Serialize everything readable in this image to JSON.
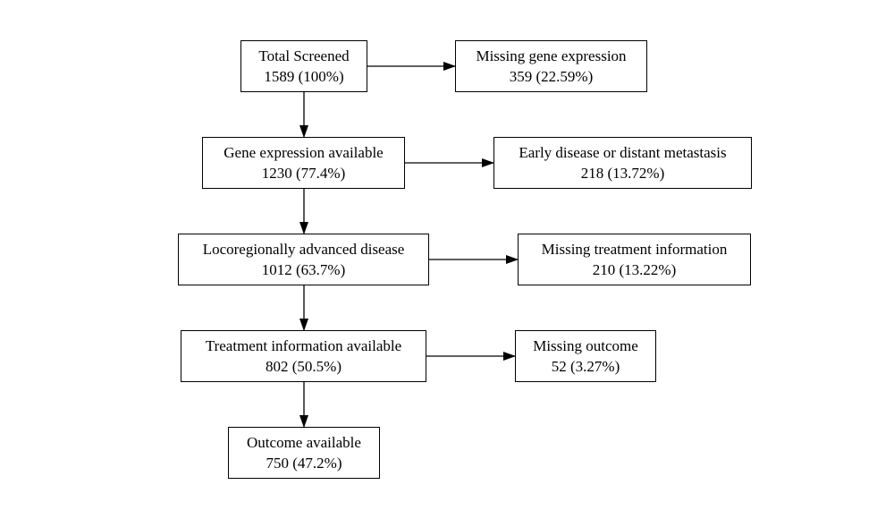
{
  "nodes": {
    "total": {
      "label": "Total Screened",
      "value": "1589 (100%)"
    },
    "missing_gene": {
      "label": "Missing gene expression",
      "value": "359 (22.59%)"
    },
    "gene_available": {
      "label": "Gene expression available",
      "value": "1230 (77.4%)"
    },
    "early_disease": {
      "label": "Early disease or distant metastasis",
      "value": "218 (13.72%)"
    },
    "locoregional": {
      "label": "Locoregionally advanced disease",
      "value": "1012 (63.7%)"
    },
    "missing_treatment": {
      "label": "Missing treatment information",
      "value": "210 (13.22%)"
    },
    "treatment_available": {
      "label": "Treatment information available",
      "value": "802 (50.5%)"
    },
    "missing_outcome": {
      "label": "Missing outcome",
      "value": "52 (3.27%)"
    },
    "outcome_available": {
      "label": "Outcome available",
      "value": "750 (47.2%)"
    }
  },
  "colors": {
    "stroke": "#000000",
    "background": "#ffffff"
  }
}
